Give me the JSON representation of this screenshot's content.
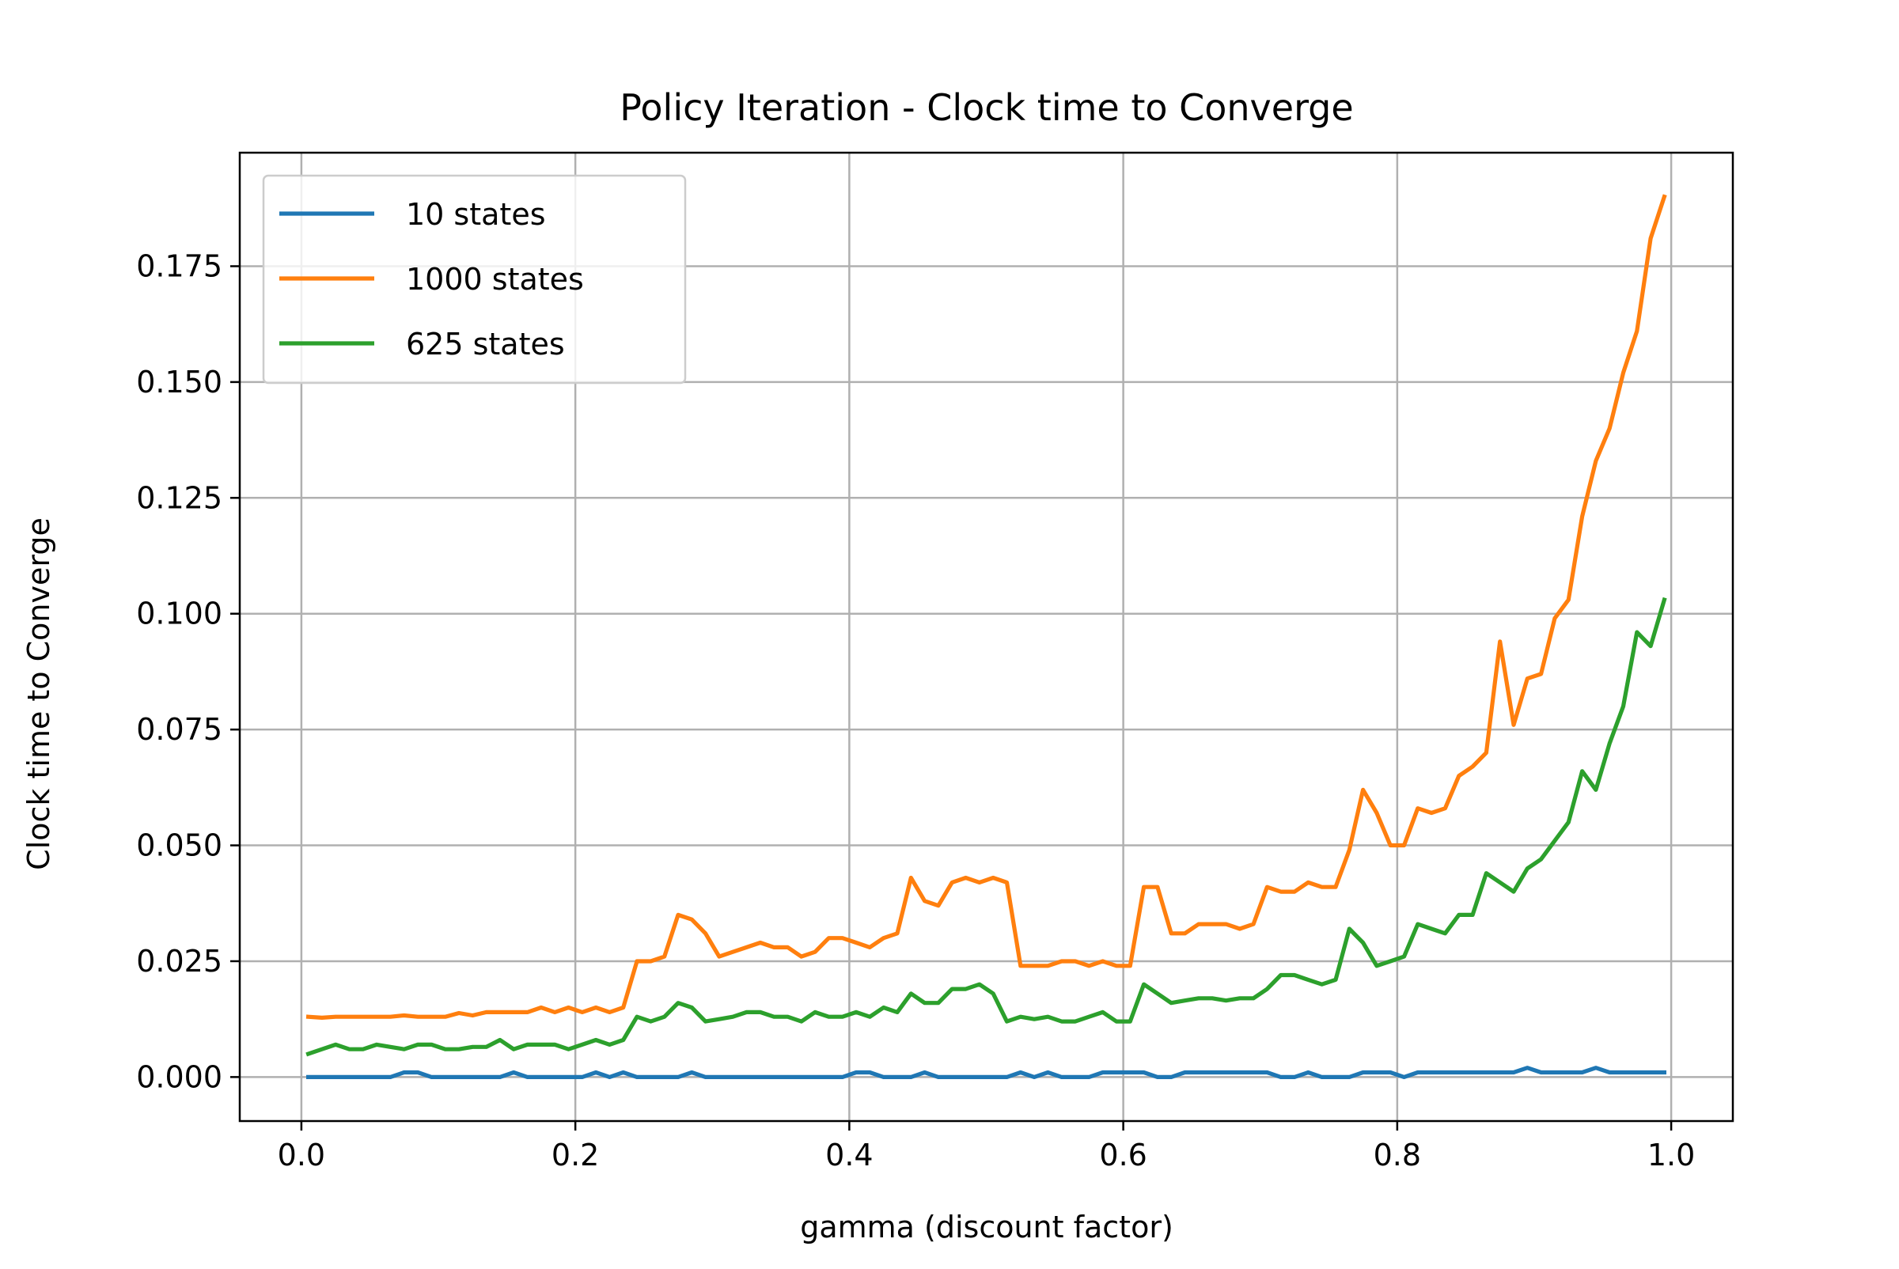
{
  "chart_data": {
    "type": "line",
    "title": "Policy Iteration - Clock time to Converge",
    "xlabel": "gamma (discount factor)",
    "ylabel": "Clock time to Converge",
    "xlim": [
      -0.045,
      1.045
    ],
    "ylim": [
      -0.0095,
      0.1995
    ],
    "xticks": [
      0.0,
      0.2,
      0.4,
      0.6,
      0.8,
      1.0
    ],
    "xtick_labels": [
      "0.0",
      "0.2",
      "0.4",
      "0.6",
      "0.8",
      "1.0"
    ],
    "yticks": [
      0.0,
      0.025,
      0.05,
      0.075,
      0.1,
      0.125,
      0.15,
      0.175
    ],
    "ytick_labels": [
      "0.000",
      "0.025",
      "0.050",
      "0.075",
      "0.100",
      "0.125",
      "0.150",
      "0.175"
    ],
    "grid": true,
    "legend_position": "top-left",
    "x": [
      0.005,
      0.015,
      0.025,
      0.035,
      0.045,
      0.055,
      0.065,
      0.075,
      0.085,
      0.095,
      0.105,
      0.115,
      0.125,
      0.135,
      0.145,
      0.155,
      0.165,
      0.175,
      0.185,
      0.195,
      0.205,
      0.215,
      0.225,
      0.235,
      0.245,
      0.255,
      0.265,
      0.275,
      0.285,
      0.295,
      0.305,
      0.315,
      0.325,
      0.335,
      0.345,
      0.355,
      0.365,
      0.375,
      0.385,
      0.395,
      0.405,
      0.415,
      0.425,
      0.435,
      0.445,
      0.455,
      0.465,
      0.475,
      0.485,
      0.495,
      0.505,
      0.515,
      0.525,
      0.535,
      0.545,
      0.555,
      0.565,
      0.575,
      0.585,
      0.595,
      0.605,
      0.615,
      0.625,
      0.635,
      0.645,
      0.655,
      0.665,
      0.675,
      0.685,
      0.695,
      0.705,
      0.715,
      0.725,
      0.735,
      0.745,
      0.755,
      0.765,
      0.775,
      0.785,
      0.795,
      0.805,
      0.815,
      0.825,
      0.835,
      0.845,
      0.855,
      0.865,
      0.875,
      0.885,
      0.895,
      0.905,
      0.915,
      0.925,
      0.935,
      0.945,
      0.955,
      0.965,
      0.975,
      0.985,
      0.995
    ],
    "series": [
      {
        "name": "10 states",
        "color": "#1f77b4",
        "values": [
          0,
          0,
          0,
          0,
          0,
          0,
          0,
          0.001,
          0.001,
          0,
          0,
          0,
          0,
          0,
          0,
          0.001,
          0,
          0,
          0,
          0,
          0,
          0.001,
          0,
          0.001,
          0,
          0,
          0,
          0,
          0.001,
          0,
          0,
          0,
          0,
          0,
          0,
          0,
          0,
          0,
          0,
          0,
          0.001,
          0.001,
          0,
          0,
          0,
          0.001,
          0,
          0,
          0,
          0,
          0,
          0,
          0.001,
          0,
          0.001,
          0,
          0,
          0,
          0.001,
          0.001,
          0.001,
          0.001,
          0,
          0,
          0.001,
          0.001,
          0.001,
          0.001,
          0.001,
          0.001,
          0.001,
          0,
          0,
          0.001,
          0,
          0,
          0,
          0.001,
          0.001,
          0.001,
          0,
          0.001,
          0.001,
          0.001,
          0.001,
          0.001,
          0.001,
          0.001,
          0.001,
          0.002,
          0.001,
          0.001,
          0.001,
          0.001,
          0.002,
          0.001,
          0.001,
          0.001,
          0.001,
          0.001
        ]
      },
      {
        "name": "1000 states",
        "color": "#ff7f0e",
        "values": [
          0.013,
          0.0128,
          0.013,
          0.013,
          0.013,
          0.013,
          0.013,
          0.0133,
          0.013,
          0.013,
          0.013,
          0.0138,
          0.0133,
          0.014,
          0.014,
          0.014,
          0.014,
          0.015,
          0.014,
          0.015,
          0.014,
          0.015,
          0.014,
          0.015,
          0.025,
          0.025,
          0.026,
          0.035,
          0.034,
          0.031,
          0.026,
          0.027,
          0.028,
          0.029,
          0.028,
          0.028,
          0.026,
          0.027,
          0.03,
          0.03,
          0.029,
          0.028,
          0.03,
          0.031,
          0.043,
          0.038,
          0.037,
          0.042,
          0.043,
          0.042,
          0.043,
          0.042,
          0.024,
          0.024,
          0.024,
          0.025,
          0.025,
          0.024,
          0.025,
          0.024,
          0.024,
          0.041,
          0.041,
          0.031,
          0.031,
          0.033,
          0.033,
          0.033,
          0.032,
          0.033,
          0.041,
          0.04,
          0.04,
          0.042,
          0.041,
          0.041,
          0.049,
          0.062,
          0.057,
          0.05,
          0.05,
          0.058,
          0.057,
          0.058,
          0.065,
          0.067,
          0.07,
          0.094,
          0.076,
          0.086,
          0.087,
          0.099,
          0.103,
          0.121,
          0.133,
          0.14,
          0.152,
          0.161,
          0.181,
          0.19
        ]
      },
      {
        "name": "625 states",
        "color": "#2ca02c",
        "values": [
          0.005,
          0.006,
          0.007,
          0.006,
          0.006,
          0.007,
          0.0065,
          0.006,
          0.007,
          0.007,
          0.006,
          0.006,
          0.0065,
          0.0065,
          0.008,
          0.006,
          0.007,
          0.007,
          0.007,
          0.006,
          0.007,
          0.008,
          0.007,
          0.008,
          0.013,
          0.012,
          0.013,
          0.016,
          0.015,
          0.012,
          0.0125,
          0.013,
          0.014,
          0.014,
          0.013,
          0.013,
          0.012,
          0.014,
          0.013,
          0.013,
          0.014,
          0.013,
          0.015,
          0.014,
          0.018,
          0.016,
          0.016,
          0.019,
          0.019,
          0.02,
          0.018,
          0.012,
          0.013,
          0.0125,
          0.013,
          0.012,
          0.012,
          0.013,
          0.014,
          0.012,
          0.012,
          0.02,
          0.018,
          0.016,
          0.0165,
          0.017,
          0.017,
          0.0165,
          0.017,
          0.017,
          0.019,
          0.022,
          0.022,
          0.021,
          0.02,
          0.021,
          0.032,
          0.029,
          0.024,
          0.025,
          0.026,
          0.033,
          0.032,
          0.031,
          0.035,
          0.035,
          0.044,
          0.042,
          0.04,
          0.045,
          0.047,
          0.051,
          0.055,
          0.066,
          0.062,
          0.072,
          0.08,
          0.096,
          0.093,
          0.103
        ]
      }
    ]
  }
}
